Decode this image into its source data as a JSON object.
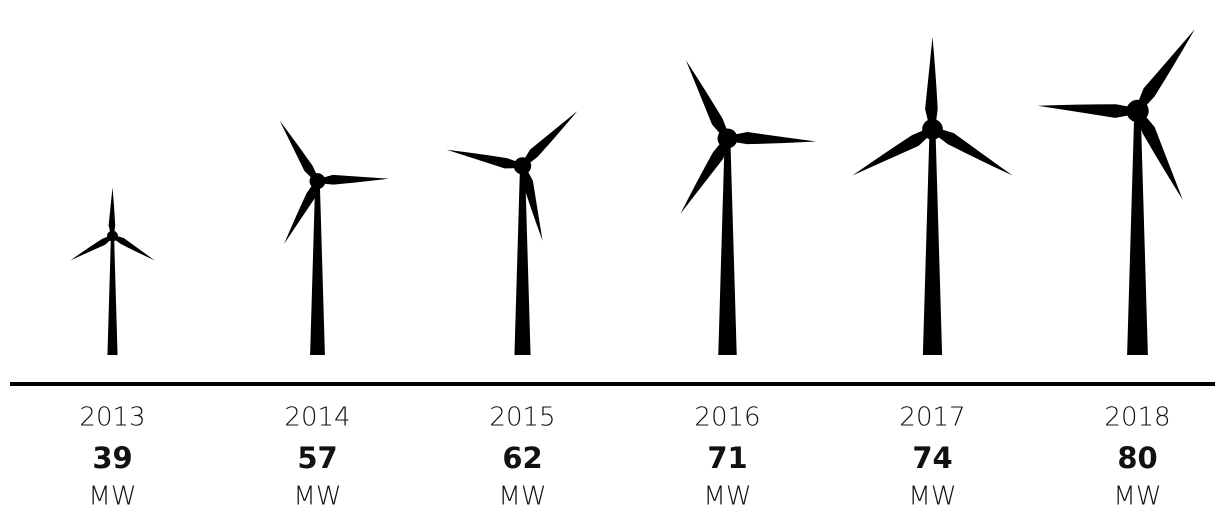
{
  "chart_data": {
    "type": "pictogram",
    "categories": [
      "2013",
      "2014",
      "2015",
      "2016",
      "2017",
      "2018"
    ],
    "values": [
      39,
      57,
      62,
      71,
      74,
      80
    ],
    "unit": "MW",
    "color": "#000000"
  }
}
